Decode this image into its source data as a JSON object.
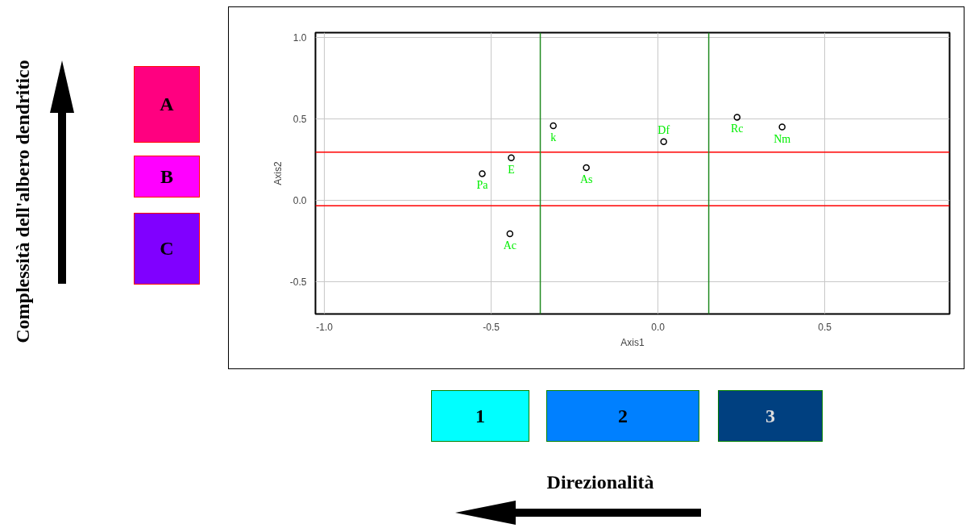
{
  "chart_data": {
    "type": "scatter",
    "xlabel": "Axis1",
    "ylabel": "Axis2",
    "x": [
      -0.527,
      -0.44,
      -0.444,
      -0.314,
      -0.215,
      0.017,
      0.237,
      0.372
    ],
    "values": [
      0.163,
      0.26,
      -0.207,
      0.458,
      0.2,
      0.36,
      0.51,
      0.45
    ],
    "color": "#000000",
    "marker": "circle",
    "grid": true,
    "xlim": [
      -1.027,
      0.874
    ],
    "ylim": [
      -0.7,
      1.03
    ],
    "xticks": [
      {
        "value": -1.0,
        "label": "-1.0"
      },
      {
        "value": -0.5,
        "label": "-0.5"
      },
      {
        "value": 0.0,
        "label": "0.0"
      },
      {
        "value": 0.5,
        "label": "0.5"
      }
    ],
    "yticks": [
      {
        "value": -0.5,
        "label": "-0.5"
      },
      {
        "value": 0.0,
        "label": "0.0"
      },
      {
        "value": 0.5,
        "label": "0.5"
      },
      {
        "value": 1.0,
        "label": "1.0"
      }
    ],
    "ref_lines": [
      {
        "axis": "y",
        "value": 0.295,
        "color": "#ff0000"
      },
      {
        "axis": "y",
        "value": -0.034,
        "color": "#ff0000"
      },
      {
        "axis": "x",
        "value": -0.353,
        "color": "#228b22"
      },
      {
        "axis": "x",
        "value": 0.152,
        "color": "#228b22"
      }
    ],
    "annotations": [
      "Complessità dell'albero dendritico",
      "Direzionalità",
      "A",
      "B",
      "C",
      "1",
      "2",
      "3",
      {
        "text": "Pa",
        "x": -0.527,
        "y": 0.163
      },
      {
        "text": "E",
        "x": -0.44,
        "y": 0.26
      },
      {
        "text": "Ac",
        "x": -0.444,
        "y": -0.207
      },
      {
        "text": "k",
        "x": -0.314,
        "y": 0.458
      },
      {
        "text": "As",
        "x": -0.215,
        "y": 0.2
      },
      {
        "text": "Df",
        "x": 0.017,
        "y": 0.36
      },
      {
        "text": "Rc",
        "x": 0.237,
        "y": 0.51
      },
      {
        "text": "Nm",
        "x": 0.372,
        "y": 0.45
      }
    ]
  }
}
